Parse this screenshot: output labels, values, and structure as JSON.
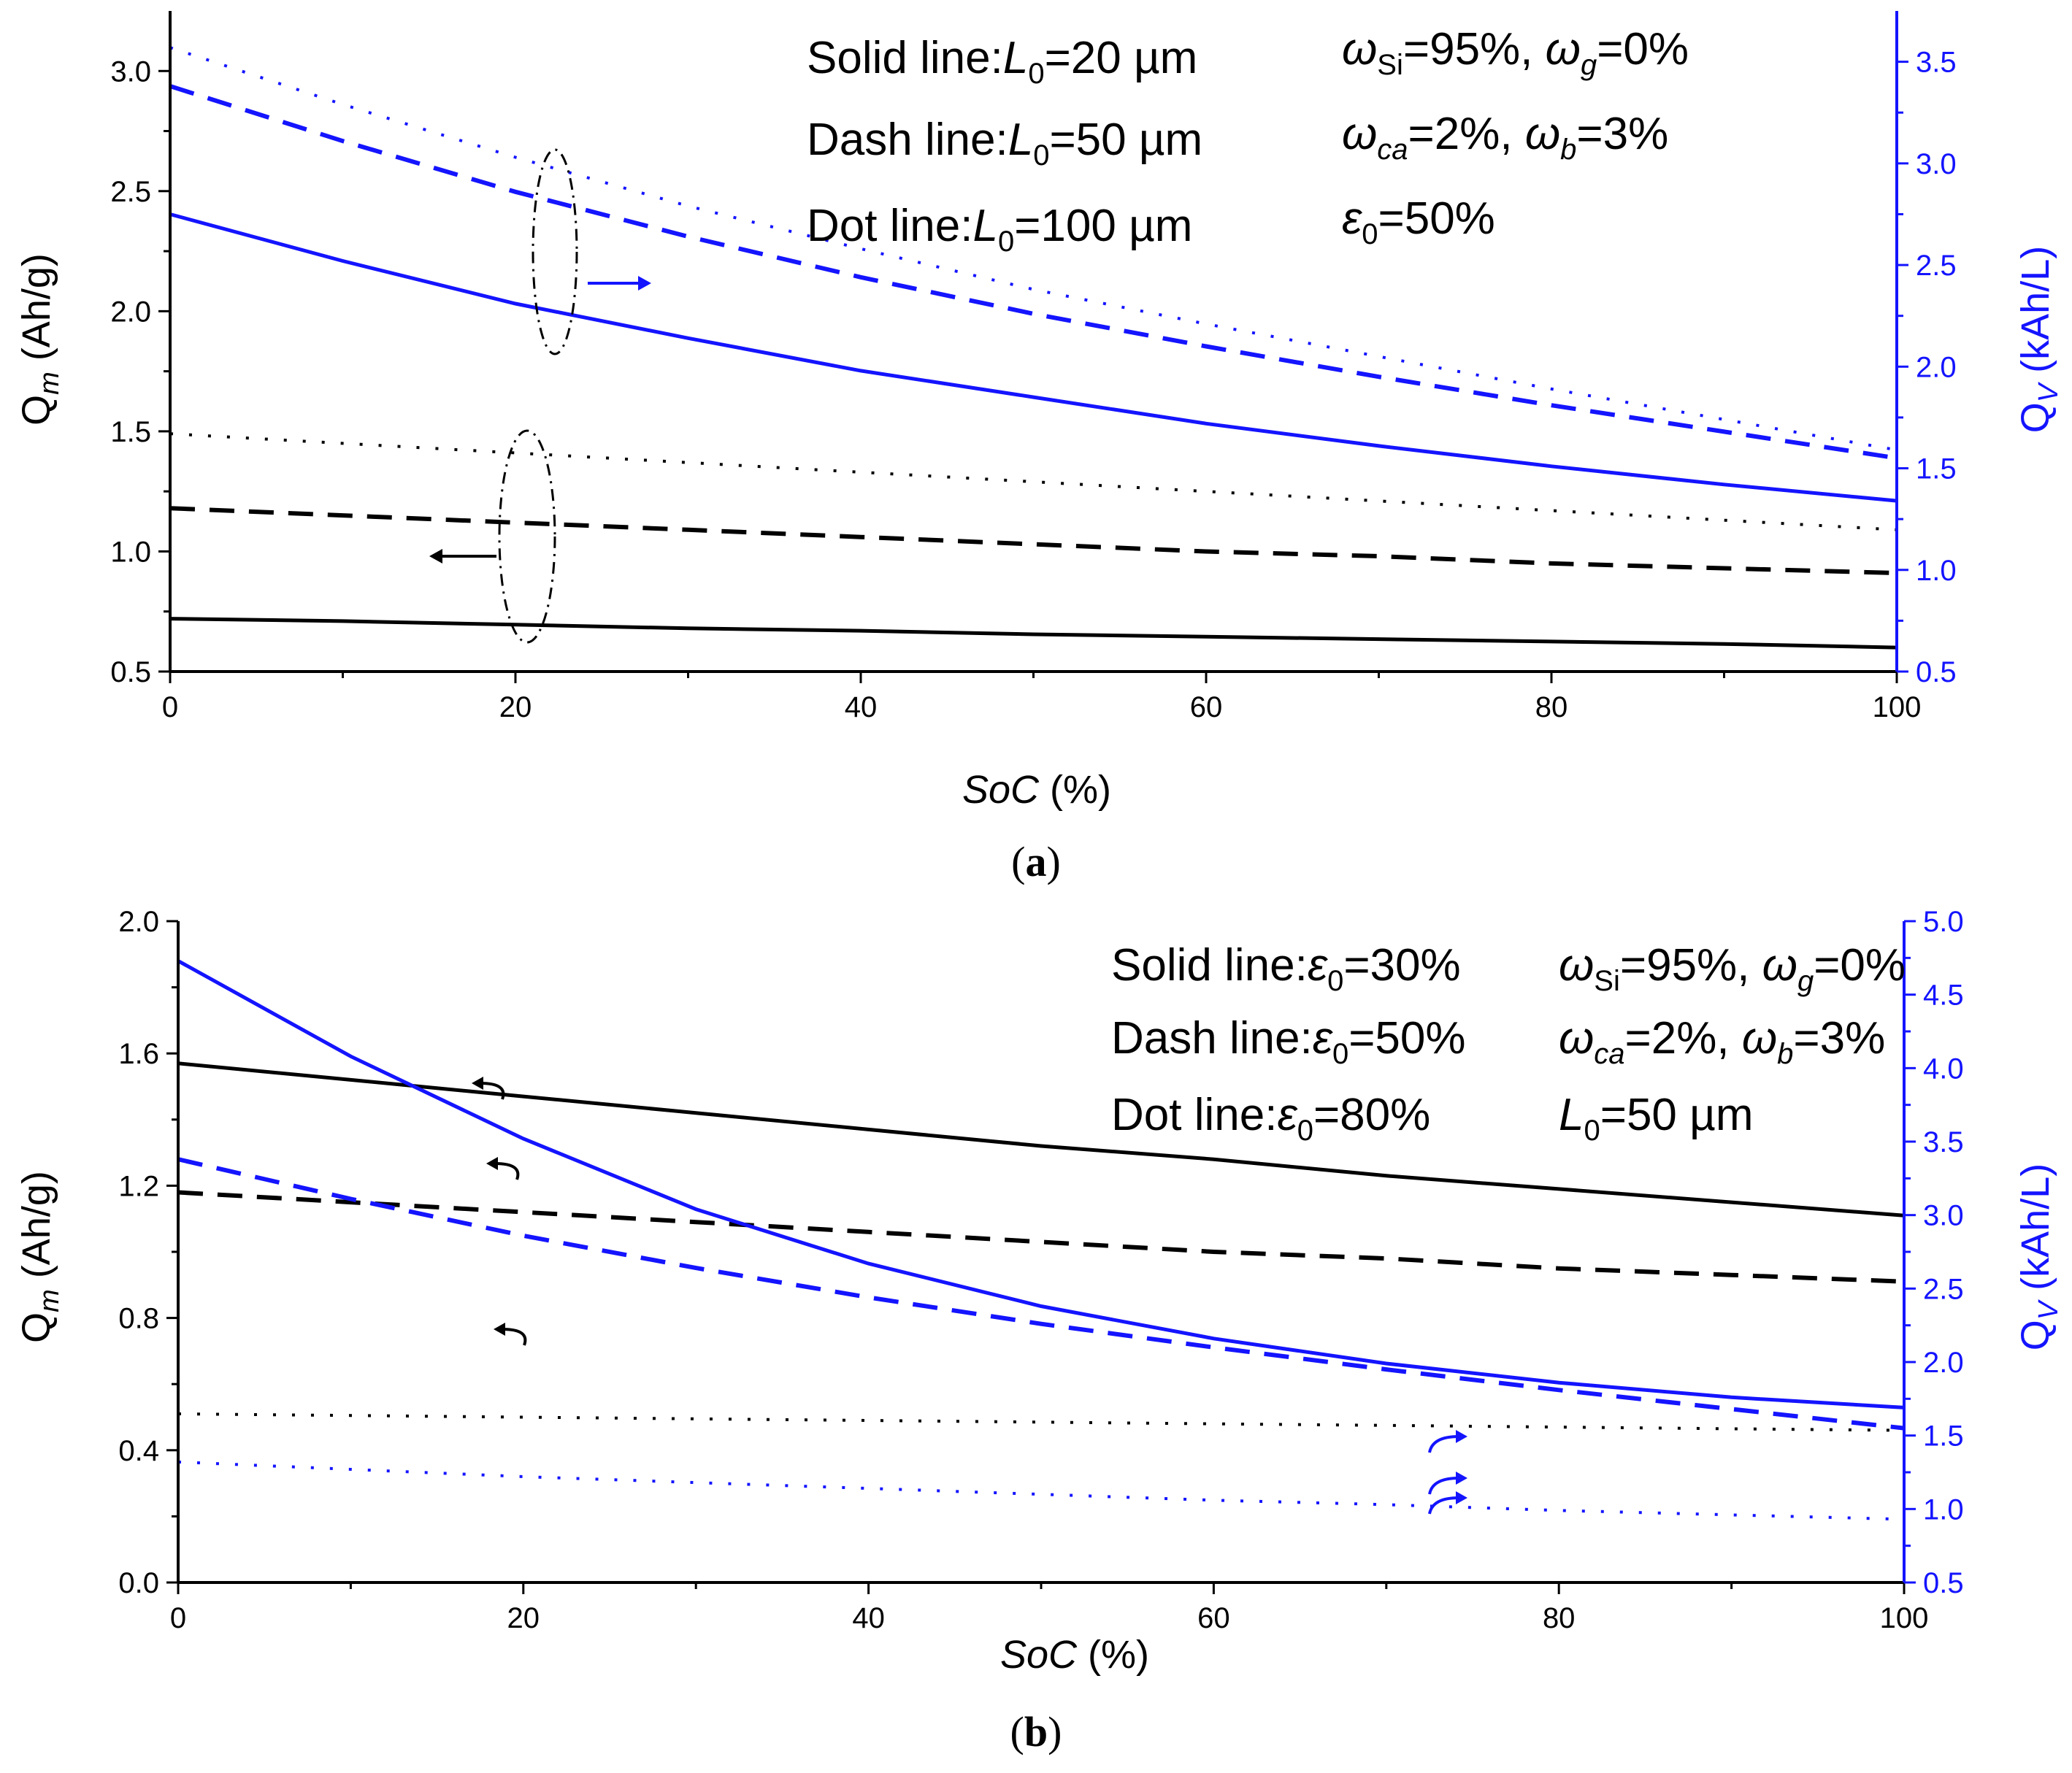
{
  "colors": {
    "black_series": "#000000",
    "blue_series": "#1414ff"
  },
  "chart_data": [
    {
      "type": "line",
      "panel": "(a)",
      "xlabel": "SoC (%)",
      "xlim": [
        0,
        100
      ],
      "xticks": [
        "0",
        "20",
        "40",
        "60",
        "80",
        "100"
      ],
      "ylabel_left": "Qm (Ah/g)",
      "ylim_left": [
        0.5,
        3.25
      ],
      "yticks_left": [
        "0.5",
        "1.0",
        "1.5",
        "2.0",
        "2.5",
        "3.0"
      ],
      "ylabel_right": "Qv (kAh/L)",
      "ylim_right": [
        0.5,
        3.75
      ],
      "yticks_right": [
        "0.5",
        "1.0",
        "1.5",
        "2.0",
        "2.5",
        "3.0",
        "3.5"
      ],
      "legend_notes": [
        {
          "label": "Solid line:",
          "var": "L",
          "sub": "0",
          "val": "=20 µm"
        },
        {
          "label": "Dash line:",
          "var": "L",
          "sub": "0",
          "val": "=50 µm"
        },
        {
          "label": "Dot line:",
          "var": "L",
          "sub": "0",
          "val": "=100 µm"
        }
      ],
      "param_notes": [
        "ωSi=95%, ωg=0%",
        "ωca=2%, ωb=3%",
        "ε0=50%"
      ],
      "x": [
        0,
        10,
        20,
        30,
        40,
        50,
        60,
        70,
        80,
        90,
        100
      ],
      "series": [
        {
          "name": "Qm, L0=20 µm",
          "axis": "left",
          "style": "solid",
          "color": "black",
          "values": [
            0.72,
            0.71,
            0.695,
            0.68,
            0.67,
            0.655,
            0.645,
            0.635,
            0.625,
            0.615,
            0.6
          ]
        },
        {
          "name": "Qm, L0=50 µm",
          "axis": "left",
          "style": "dash",
          "color": "black",
          "values": [
            1.18,
            1.15,
            1.12,
            1.09,
            1.06,
            1.03,
            1.0,
            0.98,
            0.95,
            0.93,
            0.91
          ]
        },
        {
          "name": "Qm, L0=100 µm",
          "axis": "left",
          "style": "dot",
          "color": "black",
          "values": [
            1.49,
            1.45,
            1.41,
            1.37,
            1.33,
            1.29,
            1.25,
            1.21,
            1.17,
            1.13,
            1.09
          ]
        },
        {
          "name": "Qv, L0=20 µm",
          "axis": "right",
          "style": "solid",
          "color": "blue",
          "values": [
            2.75,
            2.52,
            2.31,
            2.14,
            1.98,
            1.85,
            1.72,
            1.61,
            1.51,
            1.42,
            1.34
          ]
        },
        {
          "name": "Qv, L0=50 µm",
          "axis": "right",
          "style": "dash",
          "color": "blue",
          "values": [
            3.38,
            3.11,
            2.86,
            2.64,
            2.44,
            2.26,
            2.1,
            1.95,
            1.81,
            1.68,
            1.55
          ]
        },
        {
          "name": "Qv, L0=100 µm",
          "axis": "right",
          "style": "dot",
          "color": "blue",
          "values": [
            3.57,
            3.29,
            3.03,
            2.79,
            2.58,
            2.38,
            2.21,
            2.05,
            1.89,
            1.74,
            1.59
          ]
        }
      ]
    },
    {
      "type": "line",
      "panel": "(b)",
      "xlabel": "SoC (%)",
      "xlim": [
        0,
        100
      ],
      "xticks": [
        "0",
        "20",
        "40",
        "60",
        "80",
        "100"
      ],
      "ylabel_left": "Qm (Ah/g)",
      "ylim_left": [
        0.0,
        2.0
      ],
      "yticks_left": [
        "0.0",
        "0.4",
        "0.8",
        "1.2",
        "1.6",
        "2.0"
      ],
      "ylabel_right": "Qv (kAh/L)",
      "ylim_right": [
        0.5,
        5.0
      ],
      "yticks_right": [
        "0.5",
        "1.0",
        "1.5",
        "2.0",
        "2.5",
        "3.0",
        "3.5",
        "4.0",
        "4.5",
        "5.0"
      ],
      "legend_notes": [
        {
          "label": "Solid line:",
          "var": "ε",
          "sub": "0",
          "val": "=30%"
        },
        {
          "label": "Dash line:",
          "var": "ε",
          "sub": "0",
          "val": "=50%"
        },
        {
          "label": "Dot line:",
          "var": "ε",
          "sub": "0",
          "val": "=80%"
        }
      ],
      "param_notes": [
        "ωSi=95%, ωg=0%",
        "ωca=2%, ωb=3%",
        "L0=50 µm"
      ],
      "x": [
        0,
        10,
        20,
        30,
        40,
        50,
        60,
        70,
        80,
        90,
        100
      ],
      "series": [
        {
          "name": "Qm, ε0=30%",
          "axis": "left",
          "style": "solid",
          "color": "black",
          "values": [
            1.57,
            1.52,
            1.47,
            1.42,
            1.37,
            1.32,
            1.28,
            1.23,
            1.19,
            1.15,
            1.11
          ]
        },
        {
          "name": "Qm, ε0=50%",
          "axis": "left",
          "style": "dash",
          "color": "black",
          "values": [
            1.18,
            1.15,
            1.12,
            1.09,
            1.06,
            1.03,
            1.0,
            0.98,
            0.95,
            0.93,
            0.91
          ]
        },
        {
          "name": "Qm, ε0=80%",
          "axis": "left",
          "style": "dot",
          "color": "black",
          "values": [
            0.51,
            0.505,
            0.5,
            0.495,
            0.49,
            0.485,
            0.48,
            0.475,
            0.47,
            0.465,
            0.46
          ]
        },
        {
          "name": "Qv, ε0=30%",
          "axis": "right",
          "style": "solid",
          "color": "blue",
          "values": [
            4.73,
            4.08,
            3.52,
            3.04,
            2.67,
            2.38,
            2.16,
            1.99,
            1.86,
            1.76,
            1.69
          ]
        },
        {
          "name": "Qv, ε0=50%",
          "axis": "right",
          "style": "dash",
          "color": "blue",
          "values": [
            3.38,
            3.11,
            2.86,
            2.64,
            2.44,
            2.26,
            2.1,
            1.95,
            1.81,
            1.68,
            1.55
          ]
        },
        {
          "name": "Qv, ε0=80%",
          "axis": "right",
          "style": "dot",
          "color": "blue",
          "values": [
            1.32,
            1.27,
            1.22,
            1.18,
            1.14,
            1.1,
            1.06,
            1.03,
            0.99,
            0.96,
            0.93
          ]
        }
      ]
    }
  ]
}
